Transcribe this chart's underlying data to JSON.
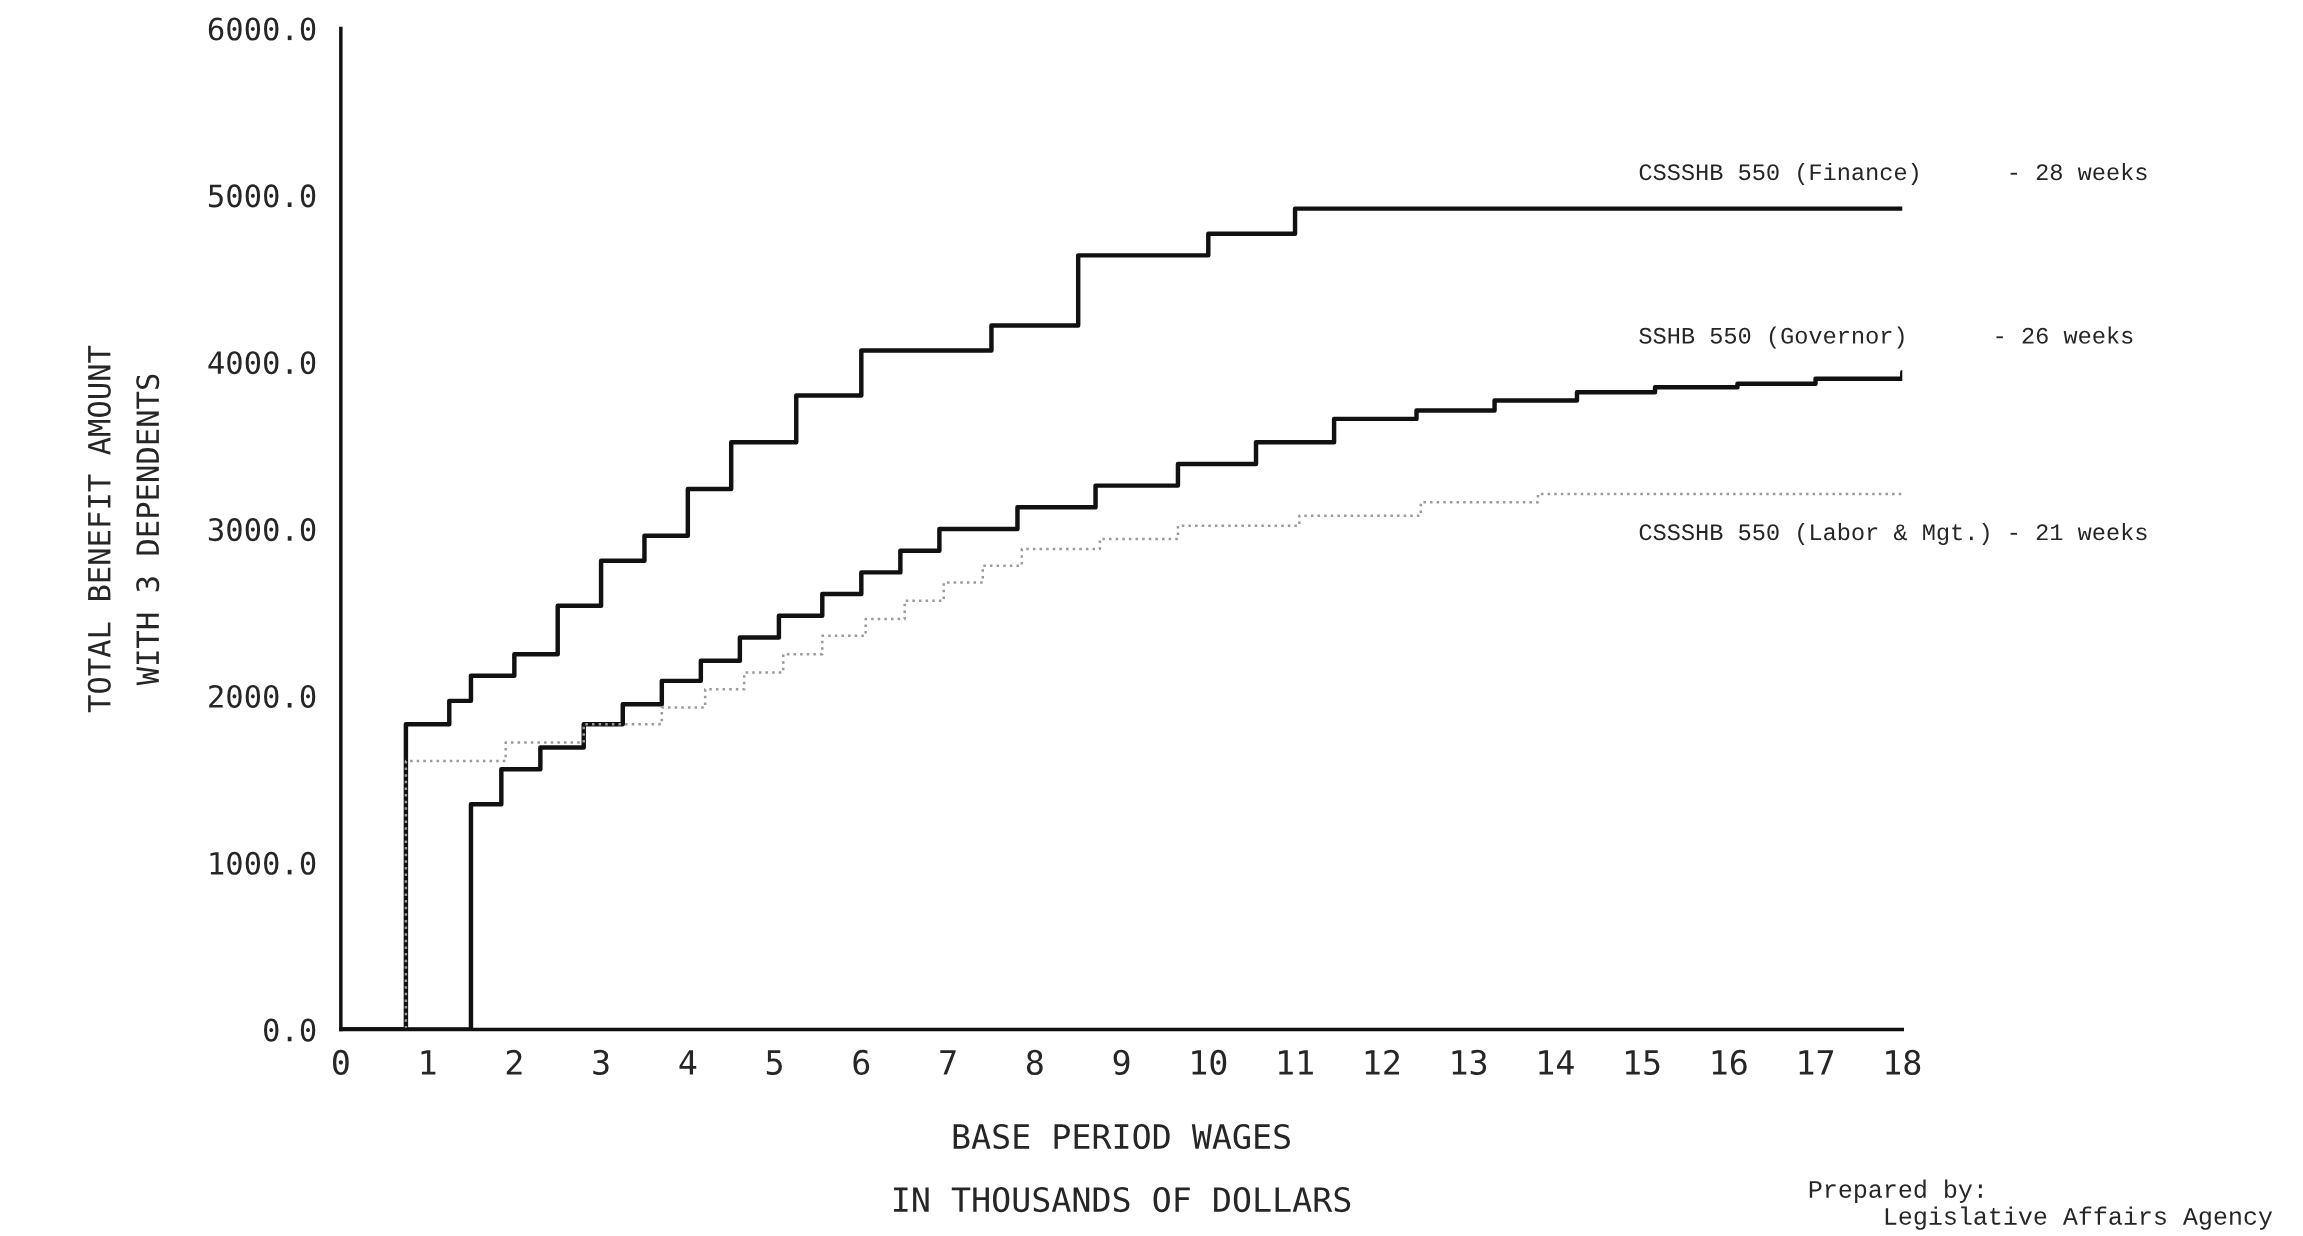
{
  "chart_data": {
    "type": "step",
    "xlabel": "BASE PERIOD WAGES\nIN THOUSANDS OF DOLLARS",
    "ylabel": "TOTAL BENEFIT AMOUNT\nWITH 3 DEPENDENTS",
    "xlim": [
      0,
      18
    ],
    "xticks": [
      0,
      1,
      2,
      3,
      4,
      5,
      6,
      7,
      8,
      9,
      10,
      11,
      12,
      13,
      14,
      15,
      16,
      17,
      18
    ],
    "ylim": [
      0,
      6000
    ],
    "yticks": [
      {
        "value": 0,
        "label": "0.0"
      },
      {
        "value": 1000,
        "label": "1000.0"
      },
      {
        "value": 2000,
        "label": "2000.0"
      },
      {
        "value": 3000,
        "label": "3000.0"
      },
      {
        "value": 4000,
        "label": "4000.0"
      },
      {
        "value": 5000,
        "label": "5000.0"
      },
      {
        "value": 6000,
        "label": "6000.0"
      }
    ],
    "grid": false,
    "legend": false,
    "series": [
      {
        "name": "CSSSHB 550 (Finance)      - 28 weeks",
        "color": "#111111",
        "line_style": "solid",
        "x": [
          0,
          0.75,
          1.25,
          1.5,
          2,
          2.5,
          3,
          3.5,
          4,
          4.5,
          5.25,
          6,
          7.5,
          8.5,
          10,
          11,
          18
        ],
        "values": [
          0,
          1830,
          1970,
          2120,
          2250,
          2540,
          2810,
          2960,
          3240,
          3520,
          3800,
          4070,
          4220,
          4640,
          4770,
          4920,
          4920
        ]
      },
      {
        "name": "SSHB 550 (Governor)      - 26 weeks",
        "color": "#111111",
        "line_style": "solid",
        "x": [
          0,
          1.5,
          1.85,
          2.3,
          2.8,
          3.25,
          3.7,
          4.15,
          4.6,
          5.05,
          5.55,
          6,
          6.45,
          6.9,
          7.8,
          8.7,
          9.65,
          10.55,
          11.45,
          12.4,
          13.3,
          14.25,
          15.15,
          16.1,
          17,
          18
        ],
        "values": [
          0,
          1350,
          1560,
          1690,
          1830,
          1950,
          2090,
          2210,
          2350,
          2480,
          2610,
          2740,
          2870,
          3000,
          3130,
          3260,
          3390,
          3520,
          3660,
          3710,
          3770,
          3820,
          3850,
          3870,
          3900,
          3940
        ]
      },
      {
        "name": "CSSSHB 550 (Labor & Mgt.) - 21 weeks",
        "color": "#9a9a9a",
        "line_style": "dotted",
        "x": [
          0,
          0.75,
          1.9,
          2.8,
          3.7,
          4.2,
          4.65,
          5.1,
          5.55,
          6.05,
          6.5,
          6.95,
          7.4,
          7.85,
          8.75,
          9.65,
          11.05,
          12.45,
          13.8,
          18
        ],
        "values": [
          0,
          1610,
          1720,
          1830,
          1930,
          2040,
          2140,
          2250,
          2360,
          2460,
          2570,
          2680,
          2780,
          2880,
          2940,
          3020,
          3080,
          3160,
          3210,
          3220
        ]
      }
    ],
    "annotations": [
      "Prepared by:\n     Legislative Affairs Agency"
    ]
  }
}
